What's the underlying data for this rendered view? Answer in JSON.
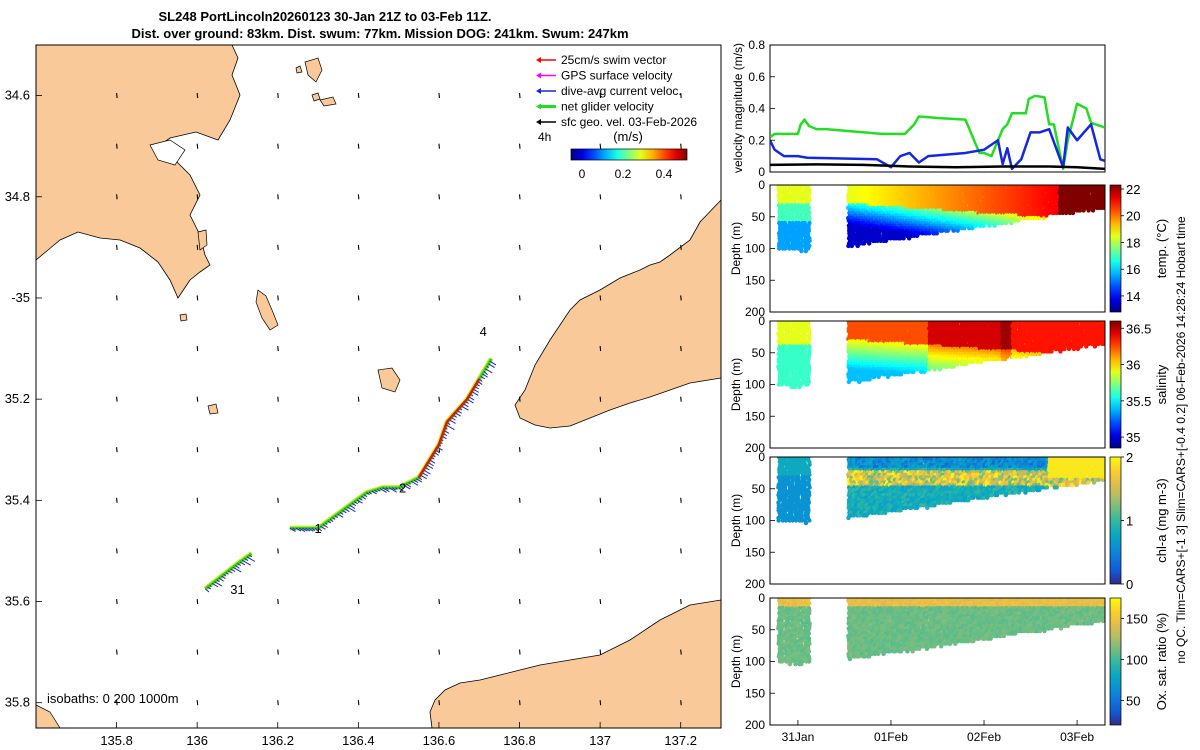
{
  "figure": {
    "title_line1": "SL248 PortLincoln20260123 30-Jan 21Z to 03-Feb 11Z.",
    "title_line2": "Dist. over ground: 83km. Dist. swum: 77km. Mission DOG: 241km. Swum: 247km",
    "side_note": "no QC. Tlim=CARS+[-1 3] Slim=CARS+[-0.4 0.2] 06-Feb-2026 14:28:24 Hobart time"
  },
  "colors": {
    "land": "#f9c99a",
    "swim_vector": "#ff0000",
    "gps_velocity": "#ff00ff",
    "current": "#1428e0",
    "net_glider": "#22dd22",
    "track": "#e8e020",
    "sfc_geo": "#000000"
  },
  "chart_data": [
    {
      "id": "map",
      "type": "scatter",
      "xlim": [
        135.6,
        137.3
      ],
      "ylim": [
        -35.85,
        -34.5
      ],
      "xticks": [
        135.8,
        136,
        136.2,
        136.4,
        136.6,
        136.8,
        137,
        137.2
      ],
      "xtick_labels": [
        "135.8",
        "136",
        "136.2",
        "136.4",
        "136.6",
        "136.8",
        "137",
        "137.2"
      ],
      "yticks": [
        -34.6,
        -34.8,
        -35,
        -35.2,
        -35.4,
        -35.6,
        -35.8
      ],
      "ytick_labels": [
        "34.6",
        "34.8",
        "-35",
        "35.2",
        "35.4",
        "35.6",
        "35.8"
      ],
      "legend": [
        {
          "label": "25cm/s swim vector",
          "color": "#ff0000"
        },
        {
          "label": "GPS surface velocity",
          "color": "#ff00ff"
        },
        {
          "label": "dive-avg current veloc.",
          "color": "#1428e0"
        },
        {
          "label": "net glider velocity",
          "color": "#22dd22"
        },
        {
          "label": "sfc geo. vel. 03-Feb-2026",
          "color": "#000000"
        }
      ],
      "colorbar": {
        "prefix": "4h",
        "units": "(m/s)",
        "ticks": [
          "0",
          "0.2",
          "0.4"
        ],
        "range": [
          -0.05,
          0.5
        ]
      },
      "isobaths_label": "isobaths: 0   200  1000m",
      "track_segments": [
        [
          [
            136.02,
            -35.575
          ],
          [
            136.06,
            -35.55
          ],
          [
            136.1,
            -35.525
          ],
          [
            136.135,
            -35.505
          ]
        ],
        [
          [
            136.23,
            -35.455
          ],
          [
            136.3,
            -35.455
          ],
          [
            136.36,
            -35.42
          ],
          [
            136.42,
            -35.385
          ],
          [
            136.46,
            -35.375
          ],
          [
            136.5,
            -35.375
          ],
          [
            136.55,
            -35.355
          ],
          [
            136.6,
            -35.29
          ],
          [
            136.62,
            -35.245
          ],
          [
            136.67,
            -35.2
          ],
          [
            136.7,
            -35.16
          ],
          [
            136.73,
            -35.12
          ]
        ]
      ],
      "track_labels": [
        {
          "text": "31",
          "lon": 136.1,
          "lat": -35.585
        },
        {
          "text": "1",
          "lon": 136.3,
          "lat": -35.465
        },
        {
          "text": "2",
          "lon": 136.51,
          "lat": -35.385
        },
        {
          "text": "4",
          "lon": 136.71,
          "lat": -35.075
        }
      ]
    },
    {
      "id": "velocity",
      "type": "line",
      "ylabel": "velocity magnitude (m/s)",
      "ylim": [
        0,
        0.8
      ],
      "yticks": [
        "0",
        "0.2",
        "0.4",
        "0.6",
        "0.8"
      ],
      "xlim": [
        0,
        3.6
      ],
      "series": [
        {
          "name": "net glider velocity",
          "color": "#22dd22",
          "x": [
            0.0,
            0.05,
            0.3,
            0.33,
            0.37,
            0.42,
            0.5,
            0.6,
            1.2,
            1.45,
            1.55,
            1.6,
            1.8,
            2.1,
            2.25,
            2.3,
            2.38,
            2.5,
            2.55,
            2.6,
            2.75,
            2.78,
            2.85,
            2.95,
            3.0,
            3.05,
            3.15,
            3.2,
            3.3,
            3.4,
            3.45,
            3.6
          ],
          "values": [
            0.22,
            0.24,
            0.24,
            0.3,
            0.33,
            0.29,
            0.27,
            0.27,
            0.24,
            0.24,
            0.3,
            0.35,
            0.34,
            0.33,
            0.12,
            0.12,
            0.1,
            0.27,
            0.3,
            0.37,
            0.37,
            0.46,
            0.48,
            0.47,
            0.3,
            0.3,
            0.02,
            0.2,
            0.43,
            0.4,
            0.31,
            0.28
          ]
        },
        {
          "name": "dive-avg current veloc.",
          "color": "#1428e0",
          "x": [
            0.0,
            0.05,
            0.15,
            0.3,
            0.4,
            1.15,
            1.3,
            1.4,
            1.5,
            1.6,
            1.7,
            2.1,
            2.3,
            2.45,
            2.5,
            2.55,
            2.6,
            2.7,
            2.8,
            2.9,
            3.0,
            3.15,
            3.2,
            3.3,
            3.45,
            3.55,
            3.6
          ],
          "values": [
            0.2,
            0.14,
            0.1,
            0.1,
            0.09,
            0.08,
            0.03,
            0.1,
            0.12,
            0.06,
            0.1,
            0.12,
            0.14,
            0.2,
            0.05,
            0.15,
            0.02,
            0.08,
            0.25,
            0.25,
            0.27,
            0.03,
            0.28,
            0.2,
            0.3,
            0.08,
            0.07
          ]
        },
        {
          "name": "sfc geo. vel.",
          "color": "#000000",
          "x": [
            0.0,
            0.5,
            1.0,
            1.5,
            2.0,
            2.5,
            3.0,
            3.3,
            3.6
          ],
          "values": [
            0.045,
            0.048,
            0.045,
            0.035,
            0.03,
            0.035,
            0.035,
            0.03,
            0.02
          ]
        }
      ]
    },
    {
      "id": "temperature",
      "type": "heatmap",
      "variable": "temp",
      "ylabel": "Depth (m)",
      "ylim": [
        200,
        0
      ],
      "yticks": [
        "0",
        "50",
        "100",
        "150",
        "200"
      ],
      "colorbar_label": "temp. (°C)",
      "colorbar_range": [
        12.8,
        22.3
      ],
      "colorbar_ticks": [
        "14",
        "16",
        "18",
        "20",
        "22"
      ],
      "colorbar_tick_values": [
        14,
        16,
        18,
        20,
        22
      ]
    },
    {
      "id": "salinity",
      "type": "heatmap",
      "variable": "sal",
      "ylabel": "Depth (m)",
      "ylim": [
        200,
        0
      ],
      "yticks": [
        "0",
        "50",
        "100",
        "150",
        "200"
      ],
      "colorbar_label": "salinity",
      "colorbar_range": [
        34.85,
        36.6
      ],
      "colorbar_ticks": [
        "35",
        "35.5",
        "36",
        "36.5"
      ],
      "colorbar_tick_values": [
        35,
        35.5,
        36,
        36.5
      ]
    },
    {
      "id": "chlorophyll",
      "type": "heatmap",
      "variable": "chl",
      "ylabel": "Depth (m)",
      "ylim": [
        200,
        0
      ],
      "yticks": [
        "0",
        "50",
        "100",
        "150",
        "200"
      ],
      "colorbar_label": "chl-a (mg m-3)",
      "colorbar_range": [
        0,
        2
      ],
      "colorbar_ticks": [
        "0",
        "1",
        "2"
      ],
      "colorbar_tick_values": [
        0,
        1,
        2
      ]
    },
    {
      "id": "oxygen",
      "type": "heatmap",
      "variable": "oxy",
      "ylabel": "Depth (m)",
      "ylim": [
        200,
        0
      ],
      "yticks": [
        "0",
        "50",
        "100",
        "150",
        "200"
      ],
      "colorbar_label": "Ox. sat. ratio (%)",
      "colorbar_range": [
        20,
        175
      ],
      "colorbar_ticks": [
        "50",
        "100",
        "150"
      ],
      "colorbar_tick_values": [
        50,
        100,
        150
      ],
      "xticks": [
        "31Jan",
        "01Feb",
        "02Feb",
        "03Feb"
      ],
      "xtick_days": [
        0.3,
        1.3,
        2.3,
        3.3
      ]
    }
  ]
}
